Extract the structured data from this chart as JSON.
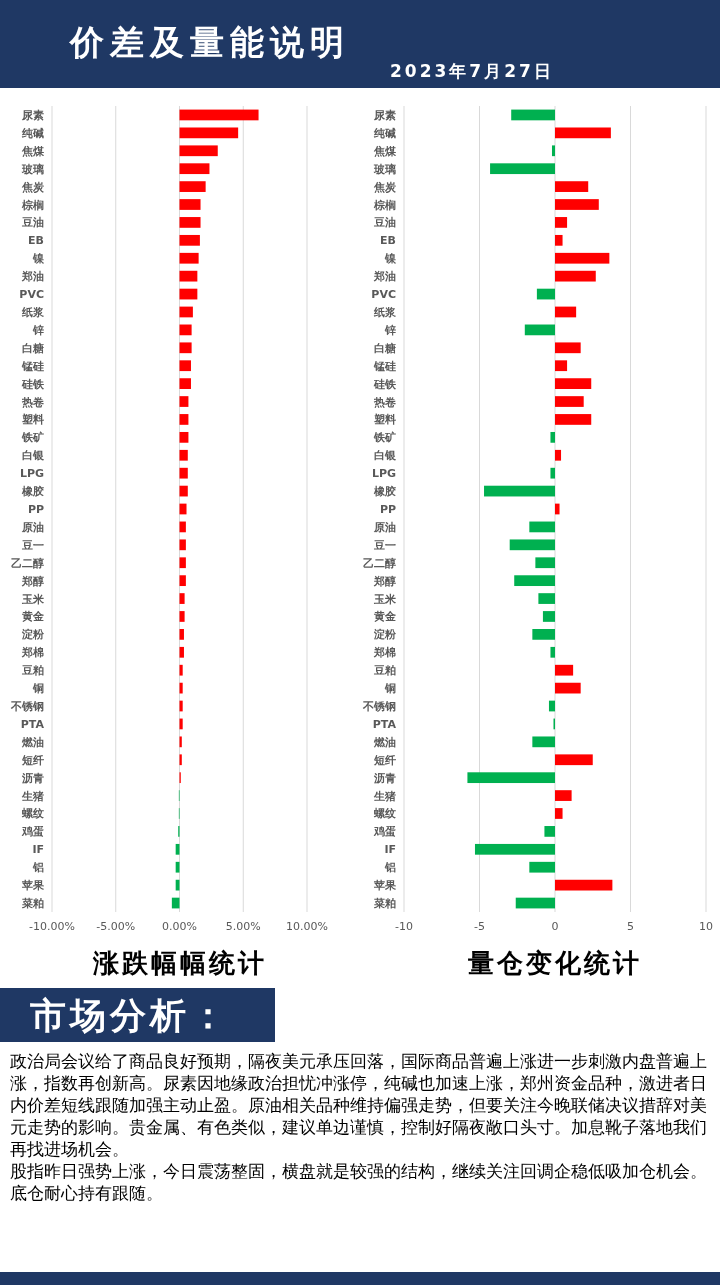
{
  "chart_data": [
    {
      "type": "other",
      "title": "价差及量能说明",
      "subtitle": "2023年7月27日"
    },
    {
      "type": "bar",
      "orientation": "horizontal",
      "title": "涨跌幅幅统计",
      "categories": [
        "尿素",
        "纯碱",
        "焦煤",
        "玻璃",
        "焦炭",
        "棕榈",
        "豆油",
        "EB",
        "镍",
        "郑油",
        "PVC",
        "纸浆",
        "锌",
        "白糖",
        "锰硅",
        "硅铁",
        "热卷",
        "塑料",
        "铁矿",
        "白银",
        "LPG",
        "橡胶",
        "PP",
        "原油",
        "豆一",
        "乙二醇",
        "郑醇",
        "玉米",
        "黄金",
        "淀粉",
        "郑棉",
        "豆粕",
        "铜",
        "不锈钢",
        "PTA",
        "燃油",
        "短纤",
        "沥青",
        "生猪",
        "螺纹",
        "鸡蛋",
        "IF",
        "铝",
        "苹果",
        "菜粕"
      ],
      "values": [
        6.2,
        4.6,
        3.0,
        2.35,
        2.05,
        1.65,
        1.65,
        1.6,
        1.5,
        1.4,
        1.4,
        1.05,
        0.95,
        0.95,
        0.9,
        0.9,
        0.7,
        0.7,
        0.7,
        0.65,
        0.65,
        0.65,
        0.55,
        0.5,
        0.5,
        0.5,
        0.5,
        0.4,
        0.4,
        0.35,
        0.35,
        0.25,
        0.25,
        0.25,
        0.25,
        0.18,
        0.18,
        0.1,
        -0.05,
        -0.05,
        -0.1,
        -0.3,
        -0.3,
        -0.3,
        -0.6
      ],
      "colors": [
        "#ff0000",
        "#ff0000",
        "#ff0000",
        "#ff0000",
        "#ff0000",
        "#ff0000",
        "#ff0000",
        "#ff0000",
        "#ff0000",
        "#ff0000",
        "#ff0000",
        "#ff0000",
        "#ff0000",
        "#ff0000",
        "#ff0000",
        "#ff0000",
        "#ff0000",
        "#ff0000",
        "#ff0000",
        "#ff0000",
        "#ff0000",
        "#ff0000",
        "#ff0000",
        "#ff0000",
        "#ff0000",
        "#ff0000",
        "#ff0000",
        "#ff0000",
        "#ff0000",
        "#ff0000",
        "#ff0000",
        "#ff0000",
        "#ff0000",
        "#ff0000",
        "#ff0000",
        "#ff0000",
        "#ff0000",
        "#ff0000",
        "#00b050",
        "#00b050",
        "#00b050",
        "#00b050",
        "#00b050",
        "#00b050",
        "#00b050"
      ],
      "xlim": [
        -10,
        10
      ],
      "xticks": [
        {
          "value": -10,
          "label": "-10.00%"
        },
        {
          "value": -5,
          "label": "-5.00%"
        },
        {
          "value": 0,
          "label": "0.00%"
        },
        {
          "value": 5,
          "label": "5.00%"
        },
        {
          "value": 10,
          "label": "10.00%"
        }
      ],
      "grid": "x"
    },
    {
      "type": "bar",
      "orientation": "horizontal",
      "title": "量仓变化统计",
      "categories": [
        "尿素",
        "纯碱",
        "焦煤",
        "玻璃",
        "焦炭",
        "棕榈",
        "豆油",
        "EB",
        "镍",
        "郑油",
        "PVC",
        "纸浆",
        "锌",
        "白糖",
        "锰硅",
        "硅铁",
        "热卷",
        "塑料",
        "铁矿",
        "白银",
        "LPG",
        "橡胶",
        "PP",
        "原油",
        "豆一",
        "乙二醇",
        "郑醇",
        "玉米",
        "黄金",
        "淀粉",
        "郑棉",
        "豆粕",
        "铜",
        "不锈钢",
        "PTA",
        "燃油",
        "短纤",
        "沥青",
        "生猪",
        "螺纹",
        "鸡蛋",
        "IF",
        "铝",
        "苹果",
        "菜粕"
      ],
      "values": [
        -2.9,
        3.7,
        -0.2,
        -4.3,
        2.2,
        2.9,
        0.8,
        0.5,
        3.6,
        2.7,
        -1.2,
        1.4,
        -2.0,
        1.7,
        0.8,
        2.4,
        1.9,
        2.4,
        -0.3,
        0.4,
        -0.3,
        -4.7,
        0.3,
        -1.7,
        -3.0,
        -1.3,
        -2.7,
        -1.1,
        -0.8,
        -1.5,
        -0.3,
        1.2,
        1.7,
        -0.4,
        -0.1,
        -1.5,
        2.5,
        -5.8,
        1.1,
        0.5,
        -0.7,
        -5.3,
        -1.7,
        3.8,
        -2.6
      ],
      "colors": [
        "#00b050",
        "#ff0000",
        "#00b050",
        "#00b050",
        "#ff0000",
        "#ff0000",
        "#ff0000",
        "#ff0000",
        "#ff0000",
        "#ff0000",
        "#00b050",
        "#ff0000",
        "#00b050",
        "#ff0000",
        "#ff0000",
        "#ff0000",
        "#ff0000",
        "#ff0000",
        "#00b050",
        "#ff0000",
        "#00b050",
        "#00b050",
        "#ff0000",
        "#00b050",
        "#00b050",
        "#00b050",
        "#00b050",
        "#00b050",
        "#00b050",
        "#00b050",
        "#00b050",
        "#ff0000",
        "#ff0000",
        "#00b050",
        "#00b050",
        "#00b050",
        "#ff0000",
        "#00b050",
        "#ff0000",
        "#ff0000",
        "#00b050",
        "#00b050",
        "#00b050",
        "#ff0000",
        "#00b050"
      ],
      "xlim": [
        -10,
        10
      ],
      "xticks": [
        -10,
        -5,
        0,
        5,
        10
      ],
      "grid": "x"
    },
    {
      "type": "other",
      "title": "市场分析：",
      "annotations": [
        "政治局会议给了商品良好预期，隔夜美元承压回落，国际商品普遍上涨进一步刺激内盘普遍上涨，指数再创新高。尿素因地缘政治担忧冲涨停，纯碱也加速上涨，郑州资金品种，激进者日内价差短线跟随加强主动止盈。原油相关品种维持偏强走势，但要关注今晚联储决议措辞对美元走势的影响。贵金属、有色类似，建议单边谨慎，控制好隔夜敞口头寸。加息靴子落地我们再找进场机会。",
        "股指昨日强势上涨，今日震荡整固，横盘就是较强的结构，继续关注回调企稳低吸加仓机会。底仓耐心持有跟随。"
      ]
    }
  ]
}
